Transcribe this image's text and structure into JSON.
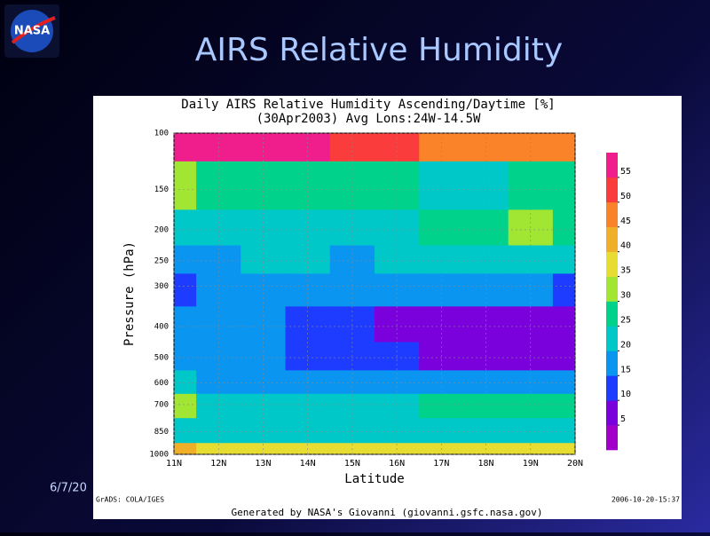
{
  "slide": {
    "title": "AIRS Relative Humidity",
    "logo": "NASA",
    "date": "6/7/20"
  },
  "chart_data": {
    "type": "contour",
    "title": "Daily AIRS Relative Humidity Ascending/Daytime [%]",
    "subtitle": "(30Apr2003)   Avg Lons:24W-14.5W",
    "x_label": "Latitude",
    "y_label": "Pressure (hPa)",
    "x": [
      11,
      12,
      13,
      14,
      15,
      16,
      17,
      18,
      19,
      20
    ],
    "y": [
      100,
      150,
      200,
      250,
      300,
      400,
      500,
      600,
      700,
      850,
      1000
    ],
    "z": [
      [
        58,
        57,
        56,
        55,
        52,
        50,
        48,
        46,
        45,
        45
      ],
      [
        30,
        28,
        28,
        27,
        26,
        25,
        24,
        24,
        25,
        26
      ],
      [
        22,
        22,
        21,
        20,
        20,
        24,
        25,
        27,
        33,
        27
      ],
      [
        18,
        18,
        20,
        20,
        18,
        22,
        22,
        22,
        22,
        21
      ],
      [
        12,
        16,
        18,
        18,
        17,
        18,
        17,
        16,
        15,
        14
      ],
      [
        15,
        17,
        17,
        10,
        10,
        8,
        6,
        6,
        6,
        7
      ],
      [
        17,
        16,
        16,
        12,
        12,
        10,
        9,
        8,
        8,
        8
      ],
      [
        22,
        17,
        17,
        17,
        17,
        16,
        15,
        15,
        15,
        15
      ],
      [
        30,
        22,
        21,
        20,
        21,
        22,
        25,
        27,
        28,
        25
      ],
      [
        22,
        20,
        20,
        20,
        20,
        21,
        22,
        22,
        22,
        23
      ],
      [
        40,
        38,
        36,
        36,
        36,
        36,
        36,
        36,
        36,
        36
      ]
    ],
    "xlim": [
      11,
      20
    ],
    "xticks": [
      {
        "value": 11,
        "label": "11N"
      },
      {
        "value": 12,
        "label": "12N"
      },
      {
        "value": 13,
        "label": "13N"
      },
      {
        "value": 14,
        "label": "14N"
      },
      {
        "value": 15,
        "label": "15N"
      },
      {
        "value": 16,
        "label": "16N"
      },
      {
        "value": 17,
        "label": "17N"
      },
      {
        "value": 18,
        "label": "18N"
      },
      {
        "value": 19,
        "label": "19N"
      },
      {
        "value": 20,
        "label": "20N"
      }
    ],
    "ylim": [
      1000,
      100
    ],
    "y_scale": "log",
    "yticks": [
      100,
      150,
      200,
      250,
      300,
      400,
      500,
      600,
      700,
      850,
      1000
    ],
    "grid": true,
    "clim": [
      0,
      60
    ],
    "cticks": [
      5,
      10,
      15,
      20,
      25,
      30,
      35,
      40,
      45,
      50,
      55
    ],
    "colors": [
      "#a000c8",
      "#7a00dc",
      "#1e3cff",
      "#0a96f0",
      "#00c8c8",
      "#00d28c",
      "#a0e632",
      "#e6dc32",
      "#f0af28",
      "#fa8228",
      "#fa3c3c",
      "#f01e8c"
    ],
    "footer_left": "GrADS: COLA/IGES",
    "footer_right": "2006-10-20-15:37",
    "credit": "Generated by NASA's Giovanni (giovanni.gsfc.nasa.gov)"
  }
}
